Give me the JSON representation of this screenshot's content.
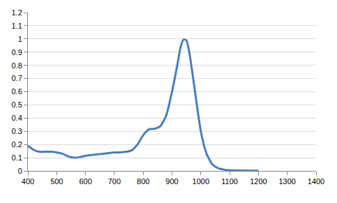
{
  "chart_data": {
    "type": "line",
    "x": [
      400,
      420,
      440,
      460,
      480,
      500,
      520,
      540,
      560,
      580,
      600,
      620,
      640,
      660,
      680,
      700,
      720,
      740,
      760,
      780,
      800,
      820,
      840,
      860,
      880,
      900,
      920,
      930,
      940,
      950,
      960,
      980,
      1000,
      1020,
      1040,
      1060,
      1080,
      1100,
      1150,
      1200
    ],
    "values": [
      0.19,
      0.16,
      0.145,
      0.145,
      0.145,
      0.14,
      0.13,
      0.11,
      0.1,
      0.105,
      0.115,
      0.12,
      0.125,
      0.13,
      0.135,
      0.14,
      0.14,
      0.145,
      0.155,
      0.2,
      0.27,
      0.315,
      0.32,
      0.34,
      0.42,
      0.6,
      0.82,
      0.94,
      0.995,
      0.99,
      0.9,
      0.6,
      0.3,
      0.13,
      0.05,
      0.02,
      0.01,
      0.005,
      0.002,
      0.001
    ],
    "color": "#4a7ebb",
    "xlim": [
      400,
      1400
    ],
    "xticks": [
      400,
      500,
      600,
      700,
      800,
      900,
      1000,
      1100,
      1200,
      1300,
      1400
    ],
    "ylim": [
      0,
      1.2
    ],
    "yticks": [
      0,
      0.1,
      0.2,
      0.3,
      0.4,
      0.5,
      0.6,
      0.7,
      0.8,
      0.9,
      1,
      1.1,
      1.2
    ],
    "grid": true,
    "marker": "none",
    "line_style": "solid"
  }
}
